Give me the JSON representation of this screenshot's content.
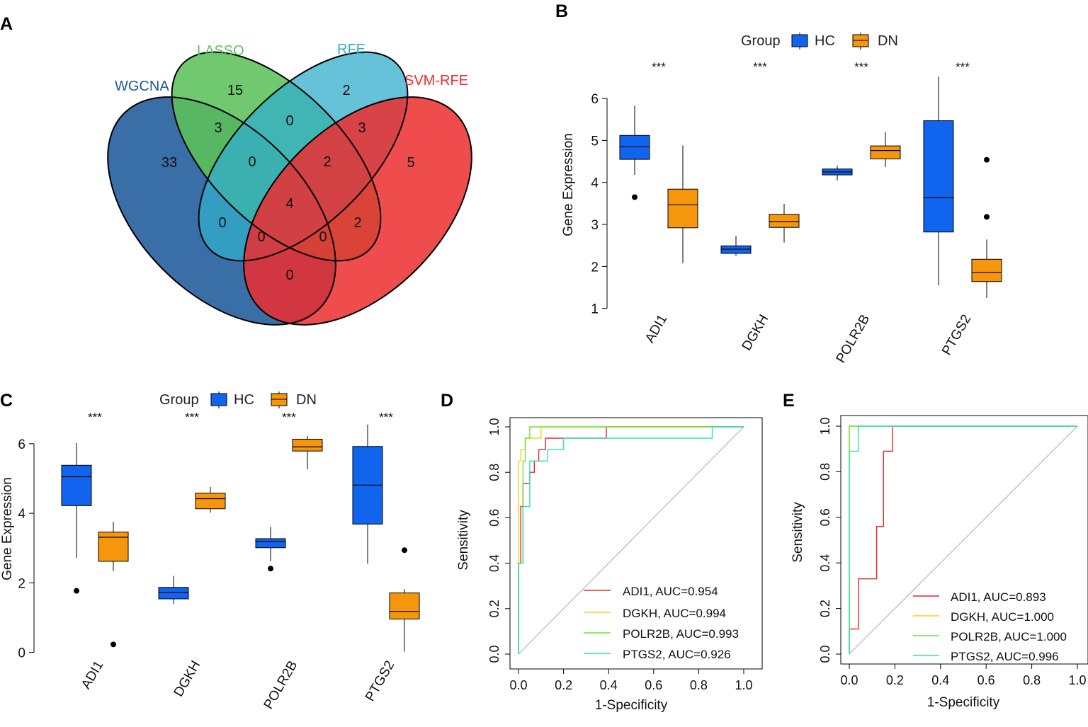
{
  "colors": {
    "hc": "#1164EE",
    "dn": "#F5960C",
    "wgcna": "#1F5A9A",
    "lasso": "#5CC15A",
    "rfe": "#31AECB",
    "svmrfe": "#EC2D2F",
    "roc_adi1": "#E8262C",
    "roc_dgkh": "#EFD31B",
    "roc_polr2b": "#6BE338",
    "roc_ptgs2": "#2FE3B2"
  },
  "panels": {
    "A": "A",
    "B": "B",
    "C": "C",
    "D": "D",
    "E": "E"
  },
  "venn": {
    "sets": [
      "WGCNA",
      "LASSO",
      "RFE",
      "SVM-RFE"
    ],
    "regions": [
      {
        "sets": "WGCNA",
        "count": "33"
      },
      {
        "sets": "LASSO",
        "count": "15"
      },
      {
        "sets": "RFE",
        "count": "2"
      },
      {
        "sets": "SVM-RFE",
        "count": "5"
      },
      {
        "sets": "WGCNA&LASSO",
        "count": "3"
      },
      {
        "sets": "LASSO&RFE",
        "count": "0"
      },
      {
        "sets": "RFE&SVM-RFE",
        "count": "3"
      },
      {
        "sets": "WGCNA&LASSO&RFE",
        "count": "0"
      },
      {
        "sets": "LASSO&RFE&SVM-RFE",
        "count": "2"
      },
      {
        "sets": "ALL",
        "count": "4"
      },
      {
        "sets": "WGCNA&RFE",
        "count": "0"
      },
      {
        "sets": "LASSO&SVM-RFE",
        "count": "2"
      },
      {
        "sets": "WGCNA&RFE&SVM-RFE",
        "count": "0"
      },
      {
        "sets": "WGCNA&LASSO&SVM-RFE",
        "count": "0"
      },
      {
        "sets": "WGCNA&SVM-RFE",
        "count": "0"
      }
    ]
  },
  "chart_data": [
    {
      "panel": "B",
      "type": "box",
      "ylabel": "Gene Expression",
      "ylim": [
        1,
        6.6
      ],
      "yticks": [
        1,
        2,
        3,
        4,
        5,
        6
      ],
      "legend_title": "Group",
      "groups": [
        "HC",
        "DN"
      ],
      "categories": [
        "ADI1",
        "DGKH",
        "POLR2B",
        "PTGS2"
      ],
      "significance": [
        "***",
        "***",
        "***",
        "***"
      ],
      "boxes": {
        "HC": [
          {
            "min": 4.18,
            "q1": 4.55,
            "median": 4.85,
            "q3": 5.12,
            "max": 5.83,
            "outliers": [
              3.65
            ]
          },
          {
            "min": 2.25,
            "q1": 2.31,
            "median": 2.41,
            "q3": 2.49,
            "max": 2.73,
            "outliers": []
          },
          {
            "min": 4.05,
            "q1": 4.18,
            "median": 4.25,
            "q3": 4.32,
            "max": 4.4,
            "outliers": []
          },
          {
            "min": 1.55,
            "q1": 2.82,
            "median": 3.64,
            "q3": 5.47,
            "max": 6.52,
            "outliers": []
          }
        ],
        "DN": [
          {
            "min": 2.08,
            "q1": 2.92,
            "median": 3.47,
            "q3": 3.84,
            "max": 4.88,
            "outliers": []
          },
          {
            "min": 2.57,
            "q1": 2.93,
            "median": 3.07,
            "q3": 3.24,
            "max": 3.49,
            "outliers": []
          },
          {
            "min": 4.37,
            "q1": 4.56,
            "median": 4.76,
            "q3": 4.87,
            "max": 5.2,
            "outliers": []
          },
          {
            "min": 1.25,
            "q1": 1.64,
            "median": 1.86,
            "q3": 2.17,
            "max": 2.64,
            "outliers": [
              3.18,
              4.54
            ]
          }
        ]
      }
    },
    {
      "panel": "C",
      "type": "box",
      "ylabel": "Gene Expression",
      "ylim": [
        -0.3,
        6.9
      ],
      "yticks": [
        0,
        2,
        4,
        6
      ],
      "legend_title": "Group",
      "groups": [
        "HC",
        "DN"
      ],
      "categories": [
        "ADI1",
        "DGKH",
        "POLR2B",
        "PTGS2"
      ],
      "significance": [
        "***",
        "***",
        "***",
        "***"
      ],
      "boxes": {
        "HC": [
          {
            "min": 2.72,
            "q1": 4.22,
            "median": 5.05,
            "q3": 5.38,
            "max": 6.02,
            "outliers": [
              1.77
            ]
          },
          {
            "min": 1.4,
            "q1": 1.54,
            "median": 1.73,
            "q3": 1.87,
            "max": 2.2,
            "outliers": []
          },
          {
            "min": 2.62,
            "q1": 3.01,
            "median": 3.19,
            "q3": 3.27,
            "max": 3.61,
            "outliers": [
              2.41
            ]
          },
          {
            "min": 2.55,
            "q1": 3.69,
            "median": 4.81,
            "q3": 5.92,
            "max": 6.55,
            "outliers": []
          }
        ],
        "DN": [
          {
            "min": 2.34,
            "q1": 2.62,
            "median": 3.31,
            "q3": 3.46,
            "max": 3.75,
            "outliers": [
              0.23
            ]
          },
          {
            "min": 4.02,
            "q1": 4.13,
            "median": 4.42,
            "q3": 4.58,
            "max": 4.76,
            "outliers": []
          },
          {
            "min": 5.27,
            "q1": 5.79,
            "median": 5.91,
            "q3": 6.13,
            "max": 6.22,
            "outliers": []
          },
          {
            "min": 0.02,
            "q1": 0.96,
            "median": 1.18,
            "q3": 1.71,
            "max": 1.82,
            "outliers": [
              2.94
            ]
          }
        ]
      }
    },
    {
      "panel": "D",
      "type": "line",
      "xlabel": "1-Specificity",
      "ylabel": "Sensitivity",
      "xlim": [
        0,
        1
      ],
      "ylim": [
        0,
        1
      ],
      "xticks": [
        "0.0",
        "0.2",
        "0.4",
        "0.6",
        "0.8",
        "1.0"
      ],
      "yticks": [
        "0.0",
        "0.2",
        "0.4",
        "0.6",
        "0.8",
        "1.0"
      ],
      "series": [
        {
          "name": "ADI1",
          "label": "ADI1, AUC=0.954",
          "color_key": "roc_adi1",
          "points": [
            [
              0,
              0
            ],
            [
              0,
              0.4
            ],
            [
              0.01,
              0.4
            ],
            [
              0.01,
              0.65
            ],
            [
              0.02,
              0.65
            ],
            [
              0.02,
              0.75
            ],
            [
              0.05,
              0.75
            ],
            [
              0.05,
              0.8
            ],
            [
              0.07,
              0.8
            ],
            [
              0.07,
              0.85
            ],
            [
              0.09,
              0.85
            ],
            [
              0.09,
              0.9
            ],
            [
              0.12,
              0.9
            ],
            [
              0.12,
              0.95
            ],
            [
              0.39,
              0.95
            ],
            [
              0.39,
              1
            ],
            [
              1,
              1
            ]
          ]
        },
        {
          "name": "DGKH",
          "label": "DGKH, AUC=0.994",
          "color_key": "roc_dgkh",
          "points": [
            [
              0,
              0
            ],
            [
              0,
              0.85
            ],
            [
              0.01,
              0.85
            ],
            [
              0.01,
              0.9
            ],
            [
              0.03,
              0.9
            ],
            [
              0.03,
              0.95
            ],
            [
              0.1,
              0.95
            ],
            [
              0.1,
              1
            ],
            [
              1,
              1
            ]
          ]
        },
        {
          "name": "POLR2B",
          "label": "POLR2B, AUC=0.993",
          "color_key": "roc_polr2b",
          "points": [
            [
              0,
              0
            ],
            [
              0,
              0.4
            ],
            [
              0.02,
              0.4
            ],
            [
              0.02,
              0.85
            ],
            [
              0.03,
              0.85
            ],
            [
              0.03,
              0.95
            ],
            [
              0.05,
              0.95
            ],
            [
              0.05,
              1
            ],
            [
              1,
              1
            ]
          ]
        },
        {
          "name": "PTGS2",
          "label": "PTGS2, AUC=0.926",
          "color_key": "roc_ptgs2",
          "points": [
            [
              0,
              0
            ],
            [
              0,
              0.4
            ],
            [
              0.02,
              0.4
            ],
            [
              0.02,
              0.65
            ],
            [
              0.05,
              0.65
            ],
            [
              0.05,
              0.85
            ],
            [
              0.13,
              0.85
            ],
            [
              0.13,
              0.9
            ],
            [
              0.2,
              0.9
            ],
            [
              0.2,
              0.95
            ],
            [
              0.86,
              0.95
            ],
            [
              0.86,
              1
            ],
            [
              1,
              1
            ]
          ]
        }
      ]
    },
    {
      "panel": "E",
      "type": "line",
      "xlabel": "1-Specificity",
      "ylabel": "Sensitivity",
      "xlim": [
        0,
        1
      ],
      "ylim": [
        0,
        1
      ],
      "xticks": [
        "0.0",
        "0.2",
        "0.4",
        "0.6",
        "0.8",
        "1.0"
      ],
      "yticks": [
        "0.0",
        "0.2",
        "0.4",
        "0.6",
        "0.8",
        "1.0"
      ],
      "series": [
        {
          "name": "ADI1",
          "label": "ADI1, AUC=0.893",
          "color_key": "roc_adi1",
          "points": [
            [
              0,
              0
            ],
            [
              0,
              0.11
            ],
            [
              0.04,
              0.11
            ],
            [
              0.04,
              0.33
            ],
            [
              0.12,
              0.33
            ],
            [
              0.12,
              0.56
            ],
            [
              0.15,
              0.56
            ],
            [
              0.15,
              0.89
            ],
            [
              0.19,
              0.89
            ],
            [
              0.19,
              1
            ],
            [
              1,
              1
            ]
          ]
        },
        {
          "name": "DGKH",
          "label": "DGKH, AUC=1.000",
          "color_key": "roc_dgkh",
          "points": [
            [
              0,
              0
            ],
            [
              0,
              1
            ],
            [
              1,
              1
            ]
          ]
        },
        {
          "name": "POLR2B",
          "label": "POLR2B, AUC=1.000",
          "color_key": "roc_polr2b",
          "points": [
            [
              0,
              0
            ],
            [
              0,
              1
            ],
            [
              1,
              1
            ]
          ]
        },
        {
          "name": "PTGS2",
          "label": "PTGS2, AUC=0.996",
          "color_key": "roc_ptgs2",
          "points": [
            [
              0,
              0
            ],
            [
              0,
              0.89
            ],
            [
              0.04,
              0.89
            ],
            [
              0.04,
              1
            ],
            [
              1,
              1
            ]
          ]
        }
      ]
    }
  ]
}
